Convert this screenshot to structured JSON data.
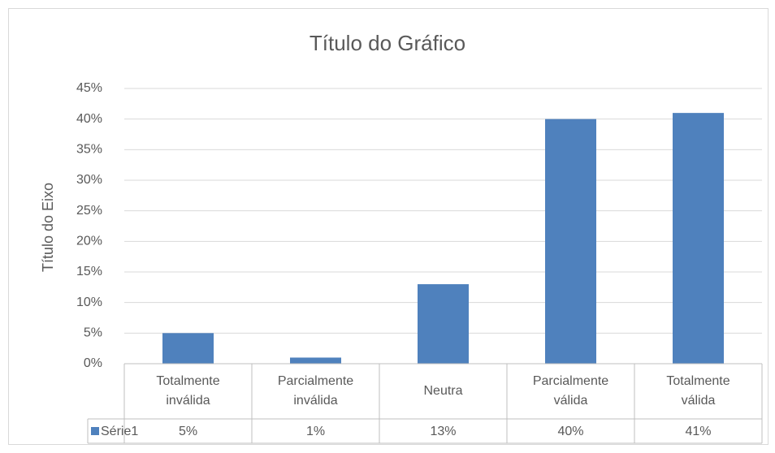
{
  "chart_data": {
    "type": "bar",
    "title": "Título do Gráfico",
    "y_label": "Título do Eixo",
    "categories": [
      "Totalmente inválida",
      "Parcialmente inválida",
      "Neutra",
      "Parcialmente válida",
      "Totalmente válida"
    ],
    "series": [
      {
        "name": "Série1",
        "color": "#4f81bd",
        "values": [
          5,
          1,
          13,
          40,
          41
        ],
        "value_labels": [
          "5%",
          "1%",
          "13%",
          "40%",
          "41%"
        ]
      }
    ],
    "ylim": [
      0,
      45
    ],
    "yticks": [
      {
        "value": 0,
        "label": "0%"
      },
      {
        "value": 5,
        "label": "5%"
      },
      {
        "value": 10,
        "label": "10%"
      },
      {
        "value": 15,
        "label": "15%"
      },
      {
        "value": 20,
        "label": "20%"
      },
      {
        "value": 25,
        "label": "25%"
      },
      {
        "value": 30,
        "label": "30%"
      },
      {
        "value": 35,
        "label": "35%"
      },
      {
        "value": 40,
        "label": "40%"
      },
      {
        "value": 45,
        "label": "45%"
      }
    ],
    "grid": true
  }
}
